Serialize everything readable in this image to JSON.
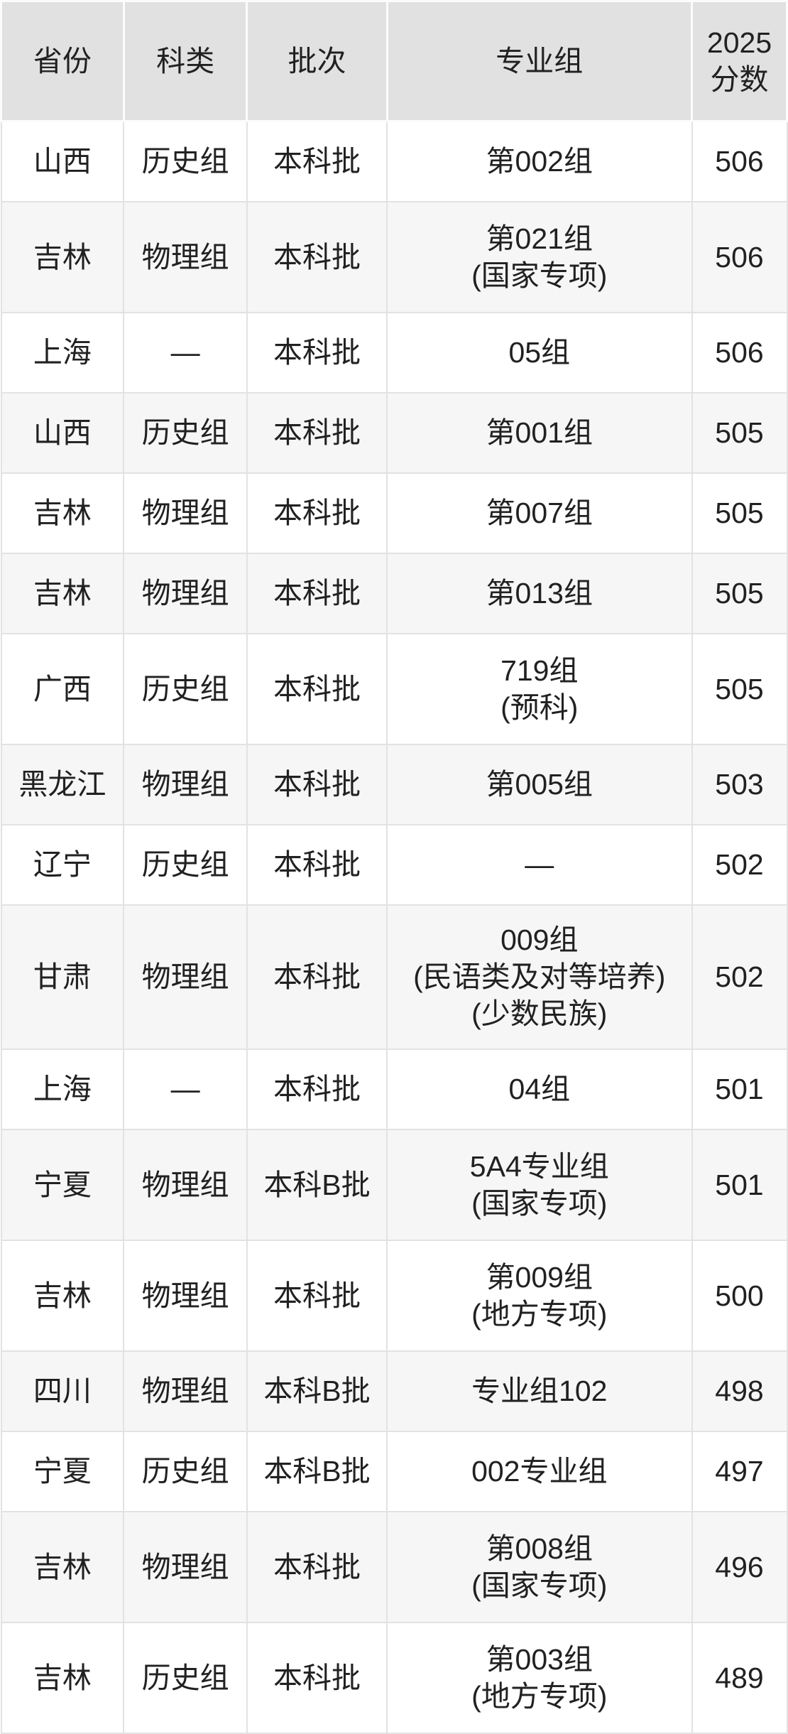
{
  "colors": {
    "header_bg": "#e1e1e1",
    "row_bg": "#ffffff",
    "row_alt_bg": "#f5f6f5",
    "grid_border": "#e2e2e2",
    "header_border": "#fcfcfc",
    "text": "#212121"
  },
  "table": {
    "columns": [
      {
        "key": "province",
        "label": "省份"
      },
      {
        "key": "category",
        "label": "科类"
      },
      {
        "key": "batch",
        "label": "批次"
      },
      {
        "key": "group",
        "label": "专业组"
      },
      {
        "key": "score",
        "label": "2025分数",
        "label_lines": [
          "2025",
          "分数"
        ]
      }
    ],
    "rows": [
      {
        "province": "山西",
        "category": "历史组",
        "batch": "本科批",
        "group": [
          "第002组"
        ],
        "score": "506"
      },
      {
        "province": "吉林",
        "category": "物理组",
        "batch": "本科批",
        "group": [
          "第021组",
          "(国家专项)"
        ],
        "score": "506"
      },
      {
        "province": "上海",
        "category": "—",
        "batch": "本科批",
        "group": [
          "05组"
        ],
        "score": "506"
      },
      {
        "province": "山西",
        "category": "历史组",
        "batch": "本科批",
        "group": [
          "第001组"
        ],
        "score": "505"
      },
      {
        "province": "吉林",
        "category": "物理组",
        "batch": "本科批",
        "group": [
          "第007组"
        ],
        "score": "505"
      },
      {
        "province": "吉林",
        "category": "物理组",
        "batch": "本科批",
        "group": [
          "第013组"
        ],
        "score": "505"
      },
      {
        "province": "广西",
        "category": "历史组",
        "batch": "本科批",
        "group": [
          "719组",
          "(预科)"
        ],
        "score": "505"
      },
      {
        "province": "黑龙江",
        "category": "物理组",
        "batch": "本科批",
        "group": [
          "第005组"
        ],
        "score": "503"
      },
      {
        "province": "辽宁",
        "category": "历史组",
        "batch": "本科批",
        "group": [
          "—"
        ],
        "score": "502"
      },
      {
        "province": "甘肃",
        "category": "物理组",
        "batch": "本科批",
        "group": [
          "009组",
          "(民语类及对等培养)",
          "(少数民族)"
        ],
        "score": "502"
      },
      {
        "province": "上海",
        "category": "—",
        "batch": "本科批",
        "group": [
          "04组"
        ],
        "score": "501"
      },
      {
        "province": "宁夏",
        "category": "物理组",
        "batch": "本科B批",
        "group": [
          "5A4专业组",
          "(国家专项)"
        ],
        "score": "501"
      },
      {
        "province": "吉林",
        "category": "物理组",
        "batch": "本科批",
        "group": [
          "第009组",
          "(地方专项)"
        ],
        "score": "500"
      },
      {
        "province": "四川",
        "category": "物理组",
        "batch": "本科B批",
        "group": [
          "专业组102"
        ],
        "score": "498"
      },
      {
        "province": "宁夏",
        "category": "历史组",
        "batch": "本科B批",
        "group": [
          "002专业组"
        ],
        "score": "497"
      },
      {
        "province": "吉林",
        "category": "物理组",
        "batch": "本科批",
        "group": [
          "第008组",
          "(国家专项)"
        ],
        "score": "496"
      },
      {
        "province": "吉林",
        "category": "历史组",
        "batch": "本科批",
        "group": [
          "第003组",
          "(地方专项)"
        ],
        "score": "489"
      }
    ]
  }
}
